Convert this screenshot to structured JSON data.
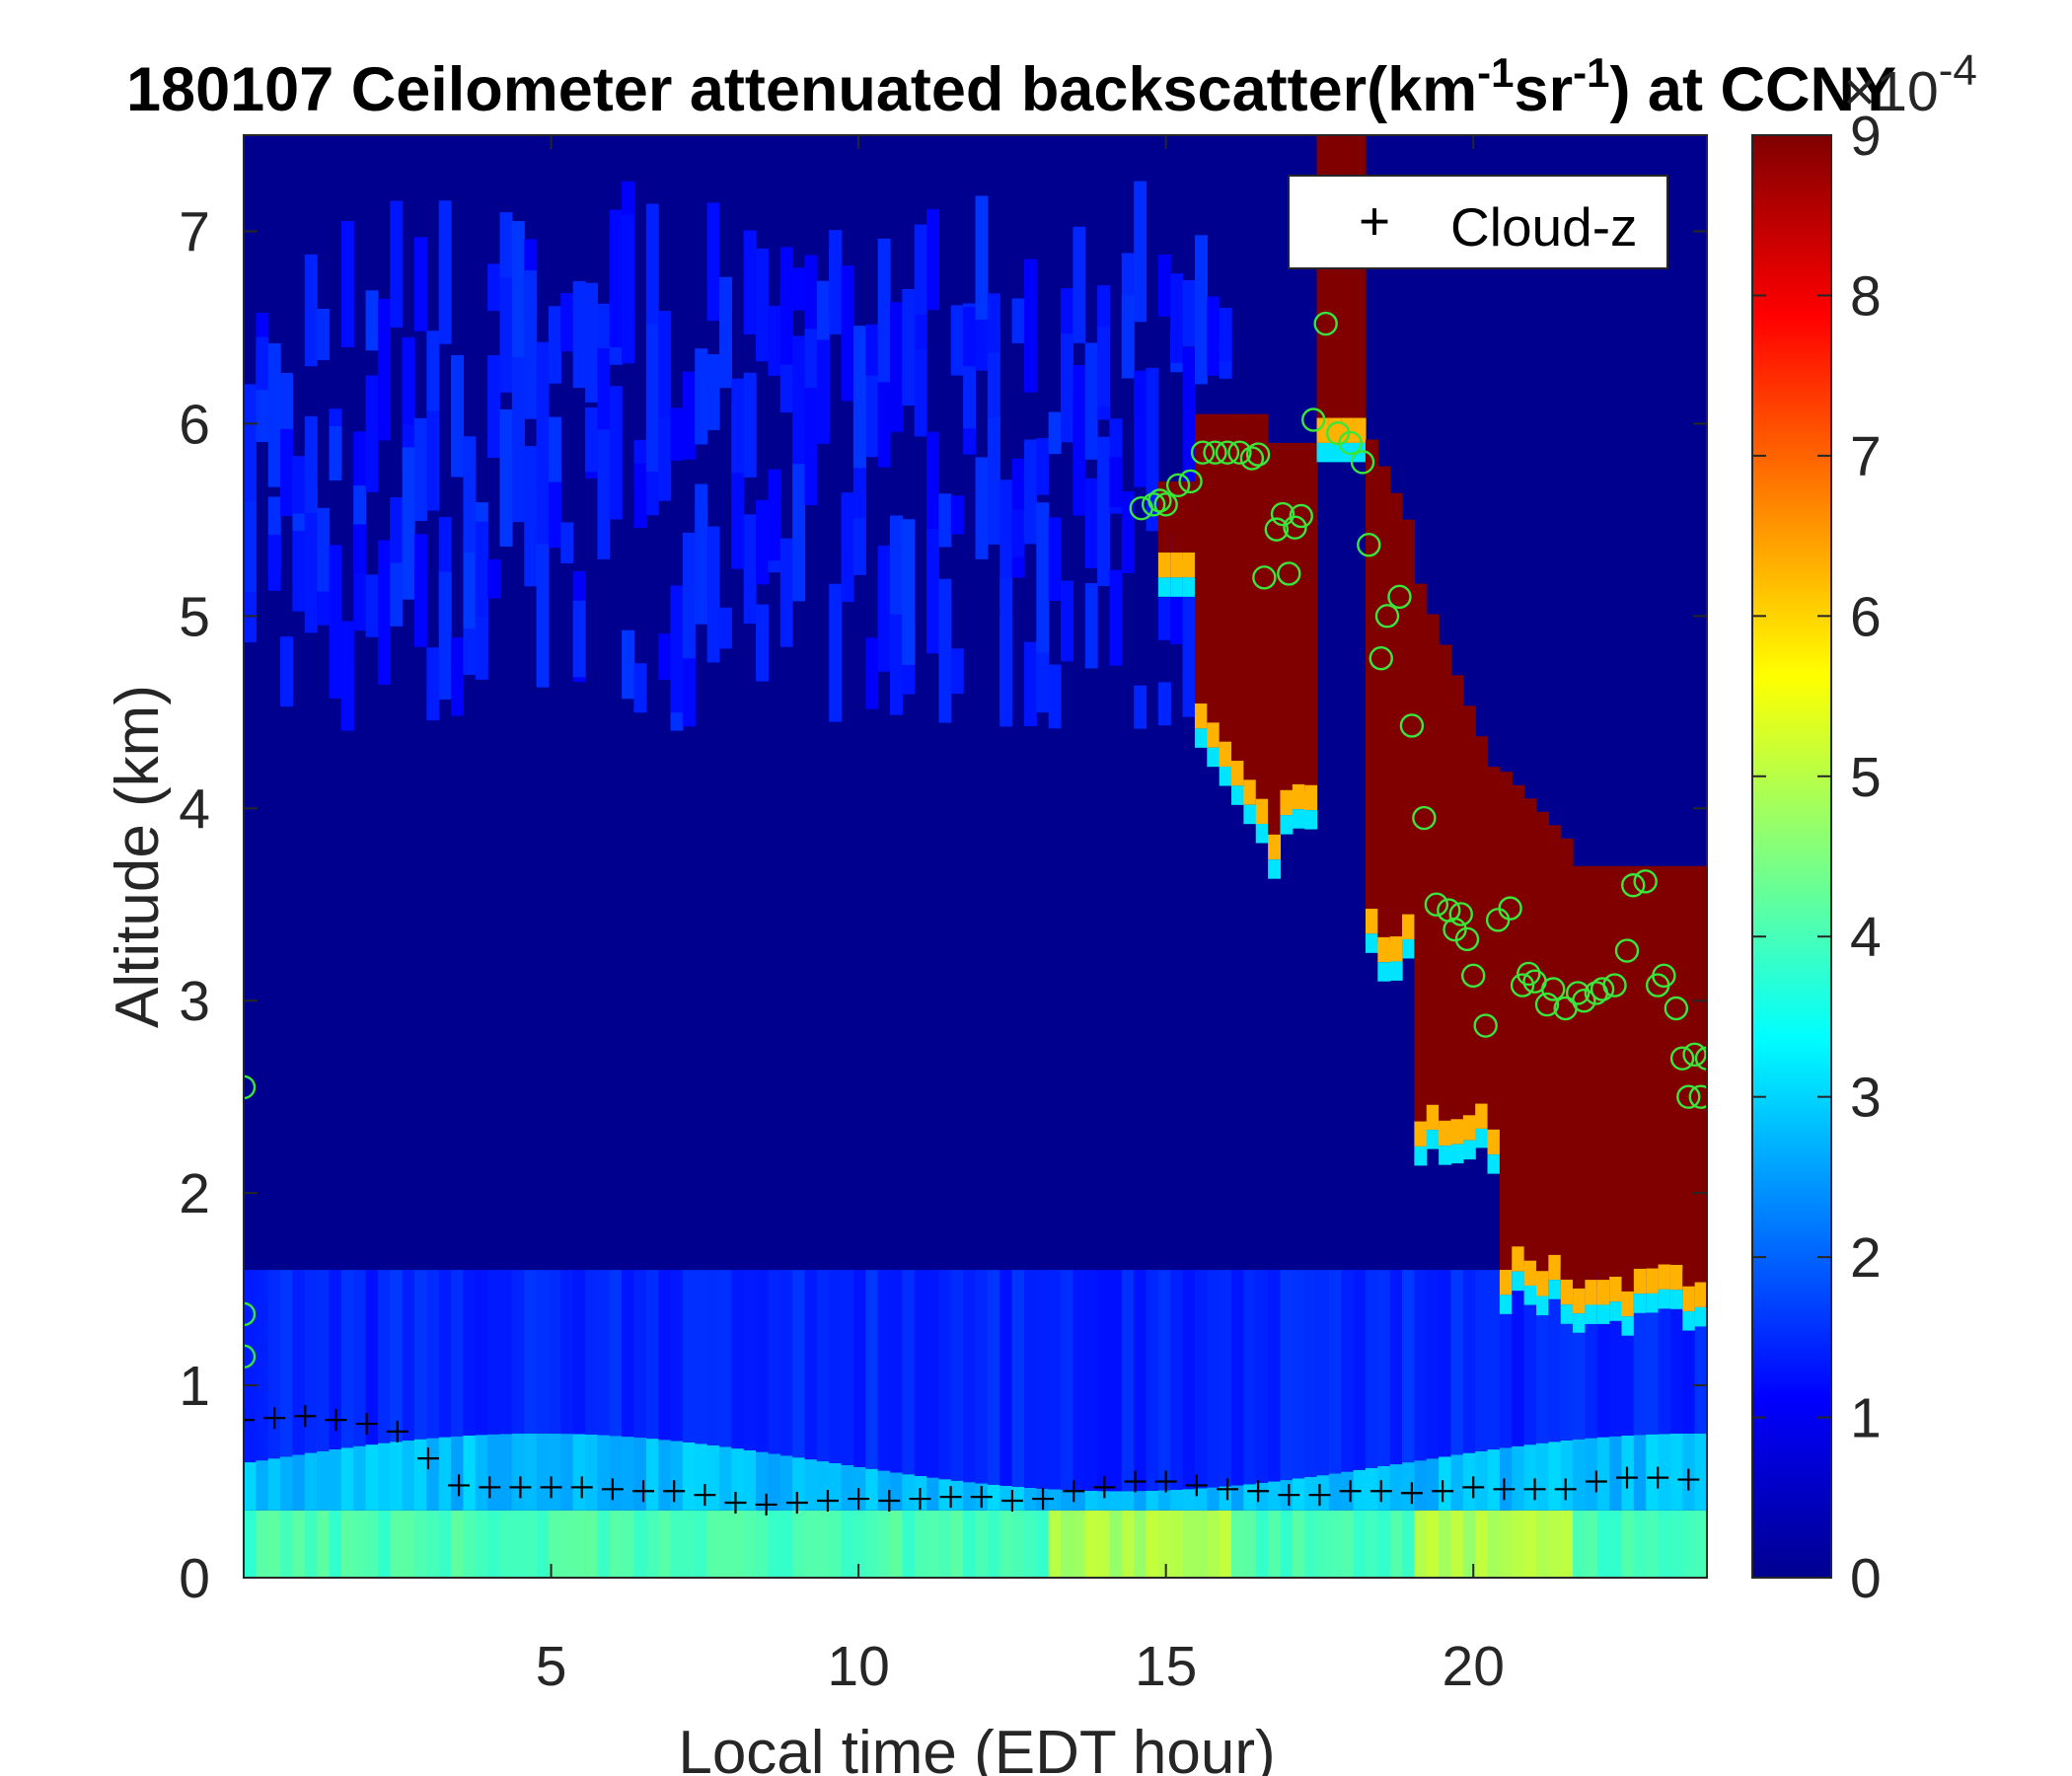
{
  "chart_data": {
    "type": "heatmap",
    "title": {
      "prefix": "180107 Ceilometer attenuated backscatter(km",
      "exp1": "-1",
      "middle": "sr",
      "exp2": "-1",
      "suffix": ") at CCNY"
    },
    "xlabel": "Local time (EDT hour)",
    "ylabel": "Altitude (km)",
    "xlim": [
      0,
      23.8
    ],
    "ylim": [
      0,
      7.5
    ],
    "x_ticks": [
      "5",
      "10",
      "15",
      "20"
    ],
    "y_ticks": [
      "0",
      "1",
      "2",
      "3",
      "4",
      "5",
      "6",
      "7"
    ],
    "colormap": "jet",
    "colorbar": {
      "range": [
        0,
        9
      ],
      "ticks": [
        "0",
        "1",
        "2",
        "3",
        "4",
        "5",
        "6",
        "7",
        "8",
        "9"
      ],
      "multiplier_base": "×10",
      "multiplier_exp": "-4"
    },
    "legend": {
      "position": "top-right",
      "entries": [
        {
          "marker": "+",
          "label": "Cloud-z"
        }
      ]
    },
    "series": [
      {
        "marker": "+",
        "color": "#000000",
        "x": [
          0.0,
          0.5,
          1.0,
          1.5,
          2.0,
          2.5,
          3.0,
          3.5,
          4.0,
          4.5,
          5.0,
          5.5,
          6.0,
          6.5,
          7.0,
          7.5,
          8.0,
          8.5,
          9.0,
          9.5,
          10.0,
          10.5,
          11.0,
          11.5,
          12.0,
          12.5,
          13.0,
          13.5,
          14.0,
          14.5,
          15.0,
          15.5,
          16.0,
          16.5,
          17.0,
          17.5,
          18.0,
          18.5,
          19.0,
          19.5,
          20.0,
          20.5,
          21.0,
          21.5,
          22.0,
          22.5,
          23.0,
          23.5
        ],
        "y": [
          0.82,
          0.83,
          0.84,
          0.82,
          0.8,
          0.76,
          0.62,
          0.48,
          0.47,
          0.47,
          0.47,
          0.47,
          0.46,
          0.45,
          0.45,
          0.43,
          0.39,
          0.38,
          0.39,
          0.4,
          0.41,
          0.4,
          0.41,
          0.42,
          0.42,
          0.4,
          0.41,
          0.45,
          0.47,
          0.5,
          0.5,
          0.48,
          0.46,
          0.45,
          0.43,
          0.43,
          0.45,
          0.45,
          0.44,
          0.45,
          0.47,
          0.46,
          0.46,
          0.46,
          0.5,
          0.52,
          0.52,
          0.51
        ]
      },
      {
        "marker": "o",
        "color": "#39e639",
        "x": [
          0.0,
          0.0,
          0.0,
          14.6,
          14.8,
          14.9,
          15.0,
          15.2,
          15.4,
          15.6,
          15.8,
          16.0,
          16.2,
          16.4,
          16.5,
          16.6,
          16.8,
          16.9,
          17.0,
          17.1,
          17.2,
          17.4,
          17.6,
          17.8,
          18.0,
          18.2,
          18.3,
          18.5,
          18.6,
          18.8,
          19.0,
          19.2,
          19.4,
          19.6,
          19.7,
          19.8,
          19.9,
          20.0,
          20.2,
          20.4,
          20.6,
          20.8,
          20.9,
          21.0,
          21.2,
          21.3,
          21.5,
          21.7,
          21.8,
          22.0,
          22.1,
          22.3,
          22.5,
          22.6,
          22.8,
          23.0,
          23.1,
          23.3,
          23.4,
          23.5,
          23.6,
          23.7,
          23.8
        ],
        "y": [
          2.55,
          1.37,
          1.15,
          5.56,
          5.58,
          5.6,
          5.58,
          5.68,
          5.7,
          5.85,
          5.85,
          5.85,
          5.85,
          5.82,
          5.84,
          5.2,
          5.45,
          5.53,
          5.22,
          5.46,
          5.52,
          6.02,
          6.52,
          5.95,
          5.9,
          5.8,
          5.37,
          4.78,
          5.0,
          5.1,
          4.43,
          3.95,
          3.5,
          3.47,
          3.37,
          3.45,
          3.32,
          3.13,
          2.87,
          3.42,
          3.48,
          3.08,
          3.14,
          3.1,
          2.98,
          3.06,
          2.96,
          3.04,
          3.0,
          3.04,
          3.06,
          3.08,
          3.26,
          3.6,
          3.62,
          3.08,
          3.13,
          2.96,
          2.7,
          2.5,
          2.72,
          2.5,
          2.7
        ]
      }
    ]
  }
}
